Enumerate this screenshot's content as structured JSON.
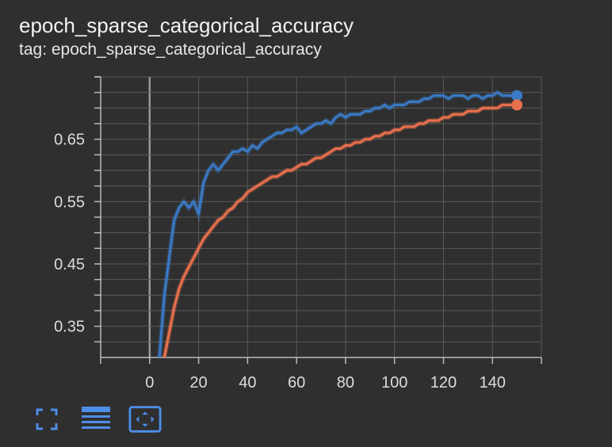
{
  "card": {
    "title": "epoch_sparse_categorical_accuracy",
    "subtitle": "tag: epoch_sparse_categorical_accuracy"
  },
  "toolbar": {
    "buttons": [
      "fullscreen-icon",
      "data-table-icon",
      "fit-domain-icon"
    ]
  },
  "colors": {
    "background": "#2f2f2f",
    "grid": "#5a5a5a",
    "axis": "#bbbbbb",
    "series_blue": "#3a79c4",
    "series_orange": "#e8704c",
    "toolbar_icon": "#4d8ee6"
  },
  "chart_data": {
    "type": "line",
    "title": "epoch_sparse_categorical_accuracy",
    "xlabel": "",
    "ylabel": "",
    "xlim": [
      -20,
      160
    ],
    "ylim": [
      0.3,
      0.75
    ],
    "x_ticks": [
      0,
      20,
      40,
      60,
      80,
      100,
      120,
      140
    ],
    "y_ticks": [
      0.35,
      0.45,
      0.55,
      0.65
    ],
    "grid": true,
    "legend": "none",
    "series": [
      {
        "color": "#3a79c4",
        "x": [
          4,
          6,
          8,
          10,
          12,
          14,
          16,
          18,
          20,
          22,
          24,
          26,
          28,
          30,
          32,
          34,
          36,
          38,
          40,
          42,
          44,
          46,
          48,
          50,
          52,
          54,
          56,
          58,
          60,
          62,
          64,
          66,
          68,
          70,
          72,
          74,
          76,
          78,
          80,
          82,
          84,
          86,
          88,
          90,
          92,
          94,
          96,
          98,
          100,
          102,
          104,
          106,
          108,
          110,
          112,
          114,
          116,
          118,
          120,
          122,
          124,
          126,
          128,
          130,
          132,
          134,
          136,
          138,
          140,
          142,
          144,
          146,
          148,
          150
        ],
        "y": [
          0.3,
          0.4,
          0.46,
          0.52,
          0.54,
          0.55,
          0.54,
          0.55,
          0.53,
          0.58,
          0.6,
          0.61,
          0.6,
          0.61,
          0.62,
          0.63,
          0.63,
          0.635,
          0.63,
          0.64,
          0.635,
          0.645,
          0.65,
          0.655,
          0.66,
          0.66,
          0.665,
          0.665,
          0.67,
          0.66,
          0.665,
          0.67,
          0.675,
          0.675,
          0.68,
          0.675,
          0.685,
          0.69,
          0.685,
          0.69,
          0.69,
          0.69,
          0.695,
          0.695,
          0.7,
          0.7,
          0.705,
          0.7,
          0.705,
          0.705,
          0.705,
          0.71,
          0.71,
          0.71,
          0.715,
          0.715,
          0.72,
          0.72,
          0.72,
          0.715,
          0.72,
          0.72,
          0.72,
          0.715,
          0.72,
          0.72,
          0.715,
          0.72,
          0.72,
          0.725,
          0.72,
          0.72,
          0.72,
          0.72
        ]
      },
      {
        "color": "#e8704c",
        "x": [
          6,
          8,
          10,
          12,
          14,
          16,
          18,
          20,
          22,
          24,
          26,
          28,
          30,
          32,
          34,
          36,
          38,
          40,
          42,
          44,
          46,
          48,
          50,
          52,
          54,
          56,
          58,
          60,
          62,
          64,
          66,
          68,
          70,
          72,
          74,
          76,
          78,
          80,
          82,
          84,
          86,
          88,
          90,
          92,
          94,
          96,
          98,
          100,
          102,
          104,
          106,
          108,
          110,
          112,
          114,
          116,
          118,
          120,
          122,
          124,
          126,
          128,
          130,
          132,
          134,
          136,
          138,
          140,
          142,
          144,
          146,
          148,
          150
        ],
        "y": [
          0.3,
          0.34,
          0.38,
          0.41,
          0.43,
          0.445,
          0.46,
          0.475,
          0.49,
          0.5,
          0.51,
          0.52,
          0.525,
          0.535,
          0.54,
          0.55,
          0.555,
          0.565,
          0.57,
          0.575,
          0.58,
          0.585,
          0.59,
          0.59,
          0.595,
          0.6,
          0.6,
          0.605,
          0.61,
          0.61,
          0.615,
          0.62,
          0.62,
          0.625,
          0.63,
          0.635,
          0.635,
          0.64,
          0.64,
          0.645,
          0.645,
          0.65,
          0.65,
          0.655,
          0.655,
          0.66,
          0.66,
          0.665,
          0.665,
          0.67,
          0.67,
          0.67,
          0.675,
          0.675,
          0.68,
          0.68,
          0.68,
          0.685,
          0.685,
          0.69,
          0.69,
          0.69,
          0.695,
          0.695,
          0.695,
          0.7,
          0.7,
          0.7,
          0.7,
          0.705,
          0.705,
          0.705,
          0.705
        ]
      }
    ]
  }
}
